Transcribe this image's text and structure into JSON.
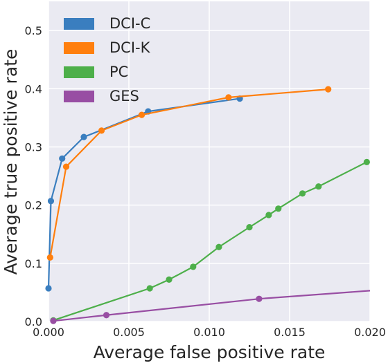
{
  "chart_data": {
    "type": "line",
    "title": "",
    "xlabel": "Average false positive rate",
    "ylabel": "Average true positive rate",
    "xlim": [
      0,
      0.02
    ],
    "ylim": [
      0,
      0.55
    ],
    "x_ticks": [
      0.0,
      0.005,
      0.01,
      0.015,
      0.02
    ],
    "x_tick_labels": [
      "0.000",
      "0.005",
      "0.010",
      "0.015",
      "0.020"
    ],
    "y_ticks": [
      0.0,
      0.1,
      0.2,
      0.3,
      0.4,
      0.5
    ],
    "y_tick_labels": [
      "0.0",
      "0.1",
      "0.2",
      "0.3",
      "0.4",
      "0.5"
    ],
    "grid": true,
    "legend_position": "top-left",
    "background": "#eaeaf2",
    "series": [
      {
        "name": "DCI-C",
        "color": "#3a7ebf",
        "x": [
          0.0,
          0.00015,
          0.00085,
          0.0022,
          0.0062,
          0.0119
        ],
        "y": [
          0.057,
          0.207,
          0.28,
          0.317,
          0.361,
          0.383
        ]
      },
      {
        "name": "DCI-K",
        "color": "#ff7f0e",
        "x": [
          0.0001,
          0.0011,
          0.0033,
          0.0058,
          0.0112,
          0.0174
        ],
        "y": [
          0.11,
          0.266,
          0.328,
          0.355,
          0.385,
          0.399
        ]
      },
      {
        "name": "PC",
        "color": "#4daf4a",
        "x": [
          0.0003,
          0.0063,
          0.0075,
          0.009,
          0.0106,
          0.0125,
          0.0137,
          0.0143,
          0.0158,
          0.0168,
          0.0198
        ],
        "y": [
          0.002,
          0.057,
          0.072,
          0.094,
          0.128,
          0.162,
          0.183,
          0.194,
          0.22,
          0.232,
          0.274
        ]
      },
      {
        "name": "GES",
        "color": "#984ea3",
        "x": [
          0.0003,
          0.0036,
          0.0131,
          0.02
        ],
        "y": [
          0.001,
          0.011,
          0.039,
          0.053
        ],
        "marker_count": 3
      }
    ]
  }
}
